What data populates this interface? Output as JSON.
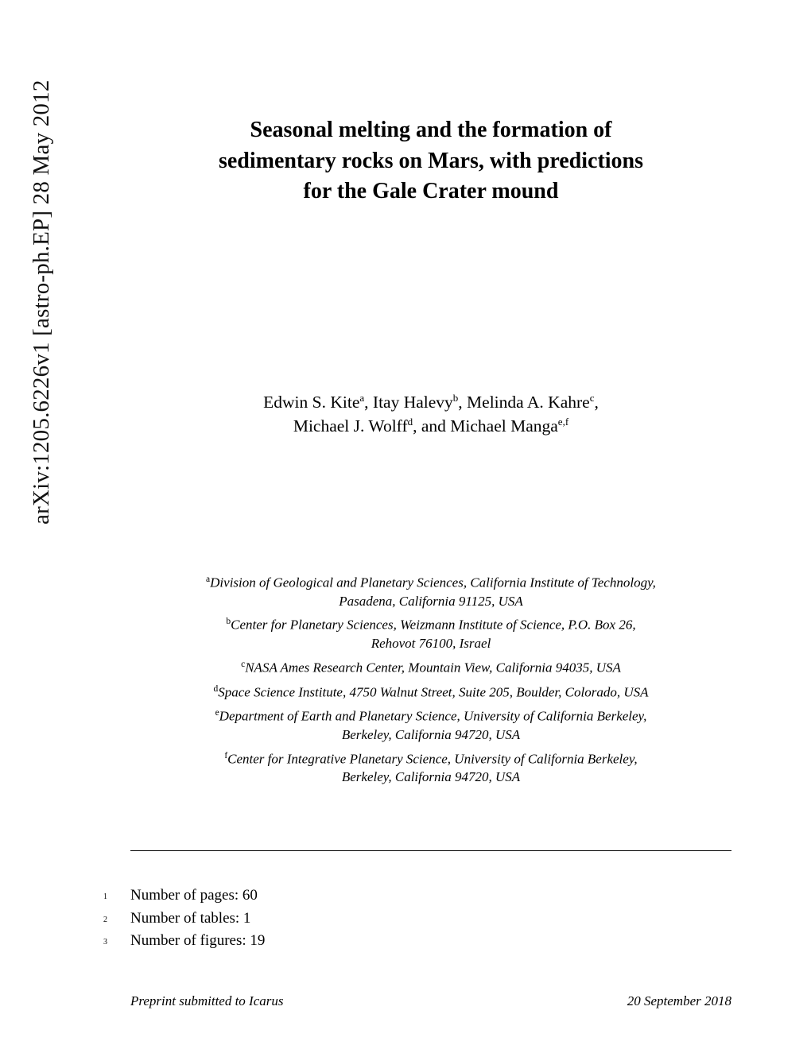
{
  "arxiv": {
    "identifier": "arXiv:1205.6226v1 [astro-ph.EP] 28 May 2012"
  },
  "title": {
    "line1": "Seasonal melting and the formation of",
    "line2": "sedimentary rocks on Mars, with predictions",
    "line3": "for the Gale Crater mound"
  },
  "authors": {
    "line1_pre": "Edwin S. Kite",
    "line1_sup1": "a",
    "line1_mid1": ", Itay Halevy",
    "line1_sup2": "b",
    "line1_mid2": ", Melinda A. Kahre",
    "line1_sup3": "c",
    "line1_end": ",",
    "line2_pre": "Michael J. Wolff",
    "line2_sup1": "d",
    "line2_mid": ", and Michael Manga",
    "line2_sup2": "e,f"
  },
  "affiliations": [
    {
      "sup": "a",
      "text1": "Division of Geological and Planetary Sciences, California Institute of Technology,",
      "text2": "Pasadena, California 91125, USA"
    },
    {
      "sup": "b",
      "text1": "Center for Planetary Sciences, Weizmann Institute of Science, P.O. Box 26,",
      "text2": "Rehovot 76100, Israel"
    },
    {
      "sup": "c",
      "text1": "NASA Ames Research Center, Mountain View, California 94035, USA",
      "text2": ""
    },
    {
      "sup": "d",
      "text1": "Space Science Institute, 4750 Walnut Street, Suite 205, Boulder, Colorado, USA",
      "text2": ""
    },
    {
      "sup": "e",
      "text1": "Department of Earth and Planetary Science, University of California Berkeley,",
      "text2": "Berkeley, California 94720, USA"
    },
    {
      "sup": "f",
      "text1": "Center for Integrative Planetary Science, University of California Berkeley,",
      "text2": "Berkeley, California 94720, USA"
    }
  ],
  "counts": {
    "pages_label": "Number of pages: 60",
    "tables_label": "Number of tables: 1",
    "figures_label": "Number of figures: 19",
    "ln1": "1",
    "ln2": "2",
    "ln3": "3"
  },
  "footer": {
    "left": "Preprint submitted to Icarus",
    "right": "20 September 2018"
  }
}
